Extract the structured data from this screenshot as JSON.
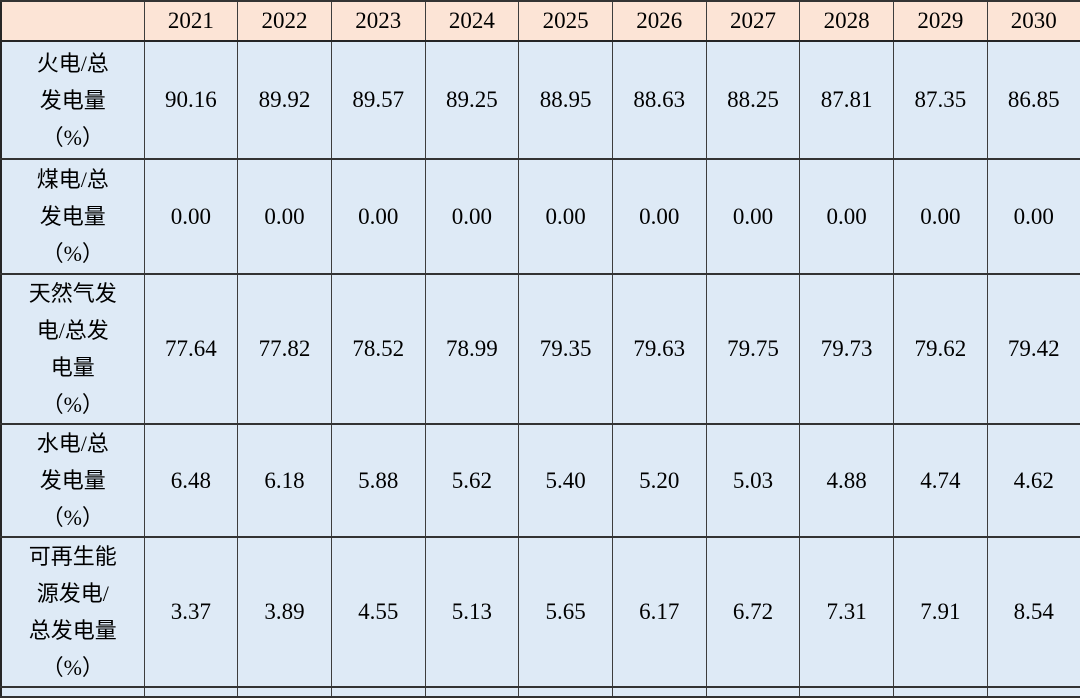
{
  "table": {
    "corner_label": "",
    "years": [
      "2021",
      "2022",
      "2023",
      "2024",
      "2025",
      "2026",
      "2027",
      "2028",
      "2029",
      "2030"
    ],
    "rows": [
      {
        "label": "火电/总\n发电量\n（%）",
        "values": [
          "90.16",
          "89.92",
          "89.57",
          "89.25",
          "88.95",
          "88.63",
          "88.25",
          "87.81",
          "87.35",
          "86.85"
        ]
      },
      {
        "label": "煤电/总\n发电量\n（%）",
        "values": [
          "0.00",
          "0.00",
          "0.00",
          "0.00",
          "0.00",
          "0.00",
          "0.00",
          "0.00",
          "0.00",
          "0.00"
        ]
      },
      {
        "label": "天然气发\n电/总发\n电量\n（%）",
        "values": [
          "77.64",
          "77.82",
          "78.52",
          "78.99",
          "79.35",
          "79.63",
          "79.75",
          "79.73",
          "79.62",
          "79.42"
        ]
      },
      {
        "label": "水电/总\n发电量\n（%）",
        "values": [
          "6.48",
          "6.18",
          "5.88",
          "5.62",
          "5.40",
          "5.20",
          "5.03",
          "4.88",
          "4.74",
          "4.62"
        ]
      },
      {
        "label": "可再生能\n源发电/\n总发电量\n（%）",
        "values": [
          "3.37",
          "3.89",
          "4.55",
          "5.13",
          "5.65",
          "6.17",
          "6.72",
          "7.31",
          "7.91",
          "8.54"
        ]
      }
    ]
  },
  "colors": {
    "header_bg": "#fce4d6",
    "body_bg": "#deeaf6",
    "grid_line": "#333333",
    "text": "#000000"
  },
  "chart_data": {
    "type": "table",
    "title": "",
    "categories": [
      "2021",
      "2022",
      "2023",
      "2024",
      "2025",
      "2026",
      "2027",
      "2028",
      "2029",
      "2030"
    ],
    "series": [
      {
        "name": "火电/总发电量（%）",
        "values": [
          90.16,
          89.92,
          89.57,
          89.25,
          88.95,
          88.63,
          88.25,
          87.81,
          87.35,
          86.85
        ]
      },
      {
        "name": "煤电/总发电量（%）",
        "values": [
          0.0,
          0.0,
          0.0,
          0.0,
          0.0,
          0.0,
          0.0,
          0.0,
          0.0,
          0.0
        ]
      },
      {
        "name": "天然气发电/总发电量（%）",
        "values": [
          77.64,
          77.82,
          78.52,
          78.99,
          79.35,
          79.63,
          79.75,
          79.73,
          79.62,
          79.42
        ]
      },
      {
        "name": "水电/总发电量（%）",
        "values": [
          6.48,
          6.18,
          5.88,
          5.62,
          5.4,
          5.2,
          5.03,
          4.88,
          4.74,
          4.62
        ]
      },
      {
        "name": "可再生能源发电/总发电量（%）",
        "values": [
          3.37,
          3.89,
          4.55,
          5.13,
          5.65,
          6.17,
          6.72,
          7.31,
          7.91,
          8.54
        ]
      }
    ]
  }
}
